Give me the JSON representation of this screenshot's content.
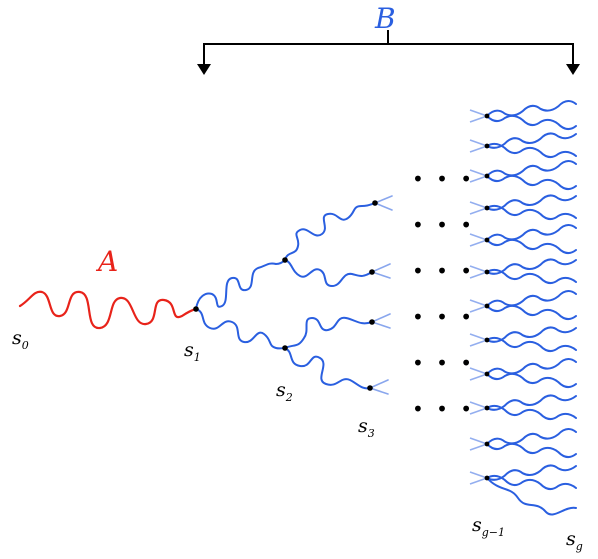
{
  "labels": {
    "A": "A",
    "B": "B",
    "s0_base": "s",
    "s0_sub": "0",
    "s1_base": "s",
    "s1_sub": "1",
    "s2_base": "s",
    "s2_sub": "2",
    "s3_base": "s",
    "s3_sub": "3",
    "sg1_base": "s",
    "sg1_sub": "g−1",
    "sg_base": "s",
    "sg_sub": "g"
  },
  "ellipsis": "• • •",
  "colors": {
    "path_A": "#e8231a",
    "tree_B": "#2a5fe0",
    "label_A": "#e8231a",
    "label_B": "#2a5fe0",
    "bracket": "#000000",
    "nodes": "#000000"
  },
  "icons": {
    "bracket_left_arrow": "arrow-down-icon",
    "bracket_right_arrow": "arrow-down-icon"
  }
}
